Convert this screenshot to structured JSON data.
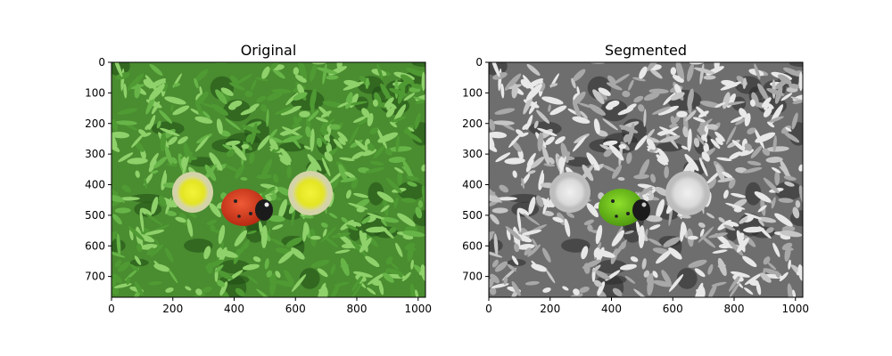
{
  "figure": {
    "panels": [
      {
        "title": "Original",
        "x_ticks": [
          "0",
          "200",
          "400",
          "600",
          "800",
          "1000"
        ],
        "y_ticks": [
          "0",
          "100",
          "200",
          "300",
          "400",
          "500",
          "600",
          "700"
        ],
        "image_description_colors": {
          "foliage": "#4f9a33",
          "foliage_light": "#8fd16a",
          "foliage_dark": "#1f4a14",
          "ground": "#7a6a55",
          "flower_yellow": "#e9ea2a",
          "flower_ring": "#c9c98a",
          "ladybug_red": "#d9381c",
          "ladybug_head": "#1b1b1b"
        }
      },
      {
        "title": "Segmented",
        "x_ticks": [
          "0",
          "200",
          "400",
          "600",
          "800",
          "1000"
        ],
        "y_ticks": [
          "0",
          "100",
          "200",
          "300",
          "400",
          "500",
          "600",
          "700"
        ],
        "image_description_colors": {
          "foliage": "#a8a8a8",
          "foliage_light": "#e8e8e8",
          "foliage_dark": "#2a2a2a",
          "flower": "#dcdcdc",
          "ladybug_green": "#6fc21a",
          "ladybug_head": "#1b1b1b"
        }
      }
    ]
  }
}
